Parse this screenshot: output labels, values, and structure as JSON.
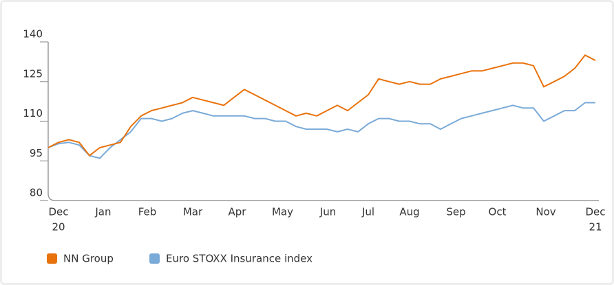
{
  "chart_data": {
    "type": "line",
    "x": [
      -1,
      0,
      1,
      2,
      3,
      4,
      5,
      6,
      7,
      8,
      9,
      10,
      11,
      12,
      13,
      14,
      15,
      16,
      17,
      18,
      19,
      20,
      21,
      22,
      23,
      24,
      25,
      26,
      27,
      28,
      29,
      30,
      31,
      32,
      33,
      34,
      35,
      36,
      37,
      38,
      39,
      40,
      41,
      42,
      43,
      44,
      45,
      46,
      47,
      48,
      49,
      50,
      51,
      52
    ],
    "series": [
      {
        "name": "NN Group",
        "color": "#e8720c",
        "values": [
          100,
          102,
          103,
          102,
          97,
          100,
          101,
          102,
          108,
          112,
          114,
          115,
          116,
          117,
          119,
          118,
          117,
          116,
          119,
          122,
          120,
          118,
          116,
          114,
          112,
          113,
          112,
          114,
          116,
          114,
          117,
          120,
          126,
          125,
          124,
          125,
          124,
          124,
          126,
          127,
          128,
          129,
          129,
          130,
          131,
          132,
          132,
          131,
          123,
          125,
          127,
          130,
          135,
          133
        ]
      },
      {
        "name": "Euro STOXX Insurance index",
        "color": "#7aaad8",
        "values": [
          100,
          101.5,
          102,
          101,
          97,
          96,
          100,
          103,
          106,
          111,
          111,
          110,
          111,
          113,
          114,
          113,
          112,
          112,
          112,
          112,
          111,
          111,
          110,
          110,
          108,
          107,
          107,
          107,
          106,
          107,
          106,
          109,
          111,
          111,
          110,
          110,
          109,
          109,
          107,
          109,
          111,
          112,
          113,
          114,
          115,
          116,
          115,
          115,
          110,
          112,
          114,
          114,
          117,
          117
        ]
      }
    ],
    "xlim": [
      -1,
      52
    ],
    "xticks": [
      {
        "value": 0,
        "label": "Dec"
      },
      {
        "value": 4.33,
        "label": "Jan"
      },
      {
        "value": 8.6,
        "label": "Feb"
      },
      {
        "value": 13,
        "label": "Mar"
      },
      {
        "value": 17.3,
        "label": "Apr"
      },
      {
        "value": 21.7,
        "label": "May"
      },
      {
        "value": 26.1,
        "label": "Jun"
      },
      {
        "value": 30,
        "label": "Jul"
      },
      {
        "value": 34,
        "label": "Aug"
      },
      {
        "value": 38.5,
        "label": "Sep"
      },
      {
        "value": 42.5,
        "label": "Oct"
      },
      {
        "value": 47.2,
        "label": "Nov"
      },
      {
        "value": 52,
        "label": "Dec"
      }
    ],
    "year_labels": [
      {
        "value": 0,
        "label": "20"
      },
      {
        "value": 52,
        "label": "21"
      }
    ],
    "ylim": [
      80,
      140
    ],
    "yticks": [
      80,
      95,
      110,
      125,
      140
    ],
    "grid": false
  }
}
